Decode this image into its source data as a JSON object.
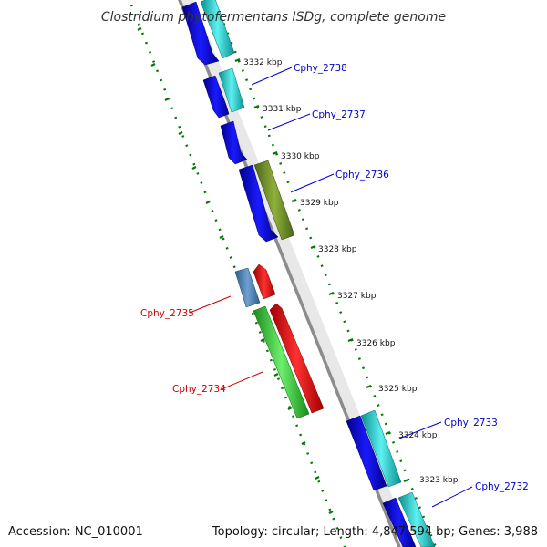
{
  "title": "Clostridium phytofermentans ISDg, complete genome",
  "accession": "Accession: NC_010001",
  "summary": "Topology: circular; Length: 4,847,594 bp; Genes: 3,988",
  "colors": {
    "backbone": "#8c8c8c",
    "tick": "#007a00",
    "forward_label": "#0000cc",
    "reverse_label": "#cc0000",
    "blue": "#0a0ae6",
    "cyan": "#1ecfcf",
    "olive": "#6b8e23",
    "red": "#ee0000",
    "green": "#33cc33",
    "steel": "#4a7fb5"
  },
  "ticks": [
    "3332 kbp",
    "3331 kbp",
    "3330 kbp",
    "3329 kbp",
    "3328 kbp",
    "3327 kbp",
    "3326 kbp",
    "3325 kbp",
    "3324 kbp",
    "3323 kbp"
  ],
  "gene_labels": [
    {
      "text": "Cphy_2738",
      "strand": "forward"
    },
    {
      "text": "Cphy_2737",
      "strand": "forward"
    },
    {
      "text": "Cphy_2736",
      "strand": "forward"
    },
    {
      "text": "Cphy_2735",
      "strand": "reverse"
    },
    {
      "text": "Cphy_2734",
      "strand": "reverse"
    },
    {
      "text": "Cphy_2733",
      "strand": "forward"
    },
    {
      "text": "Cphy_2732",
      "strand": "forward"
    }
  ]
}
